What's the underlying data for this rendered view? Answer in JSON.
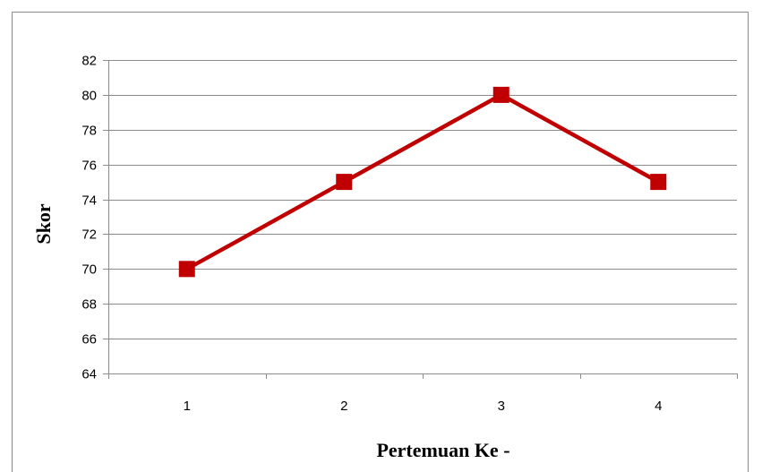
{
  "chart_data": {
    "type": "line",
    "categories": [
      "1",
      "2",
      "3",
      "4"
    ],
    "series": [
      {
        "values": [
          70,
          75,
          80,
          75
        ],
        "color": "#c00000",
        "marker": "square"
      }
    ],
    "title": "",
    "xlabel": "Pertemuan Ke -",
    "ylabel": "Skor",
    "ylim": [
      64,
      82
    ],
    "yticks": [
      64,
      66,
      68,
      70,
      72,
      74,
      76,
      78,
      80,
      82
    ],
    "grid": true,
    "legend": "none"
  },
  "colors": {
    "gridline": "#8c8c8c",
    "line": "#c00000",
    "frame": "#8c8c8c"
  }
}
